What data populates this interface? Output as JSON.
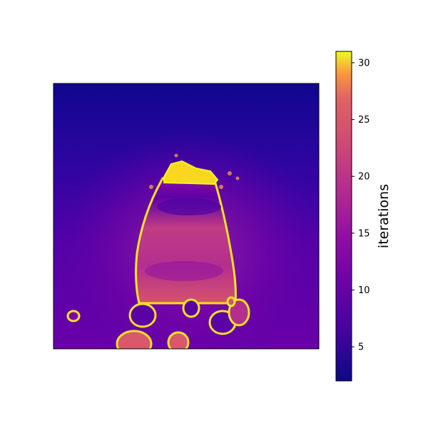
{
  "chart_data": {
    "type": "heatmap",
    "title": "",
    "xlabel": "",
    "ylabel": "",
    "axes_ticks_visible": false,
    "grid": false,
    "colormap": "plasma",
    "colorbar": {
      "label": "iterations",
      "vmin": 2,
      "vmax": 31,
      "ticks": [
        5,
        10,
        15,
        20,
        25,
        30
      ],
      "placement": "right"
    },
    "description_of_values": {
      "background_min": 2,
      "background_max": 9,
      "interior_typical": 13,
      "edge_max": 31
    }
  }
}
